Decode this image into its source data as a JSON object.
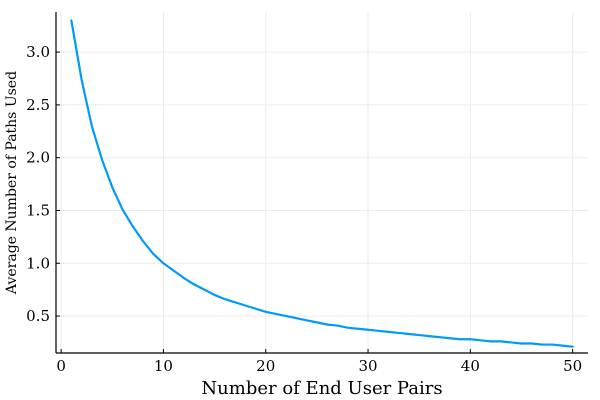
{
  "chart_data": {
    "type": "line",
    "title": "",
    "xlabel": "Number of End User Pairs",
    "ylabel": "Average Number of Paths Used",
    "xlim": [
      -0.5,
      51.5
    ],
    "ylim": [
      0.15,
      3.38
    ],
    "xticks": [
      0,
      10,
      20,
      30,
      40,
      50
    ],
    "xtick_labels": [
      "0",
      "10",
      "20",
      "30",
      "40",
      "50"
    ],
    "yticks": [
      0.5,
      1.0,
      1.5,
      2.0,
      2.5,
      3.0
    ],
    "ytick_labels": [
      "0.5",
      "1.0",
      "1.5",
      "2.0",
      "2.5",
      "3.0"
    ],
    "grid": true,
    "legend": "none",
    "colors": {
      "series": "#009AFA",
      "axis": "#000000",
      "grid": "#EBEBEB"
    },
    "series": [
      {
        "x": [
          1,
          2,
          3,
          4,
          5,
          6,
          7,
          8,
          9,
          10,
          11,
          12,
          13,
          14,
          15,
          16,
          17,
          18,
          19,
          20,
          21,
          22,
          23,
          24,
          25,
          26,
          27,
          28,
          29,
          30,
          31,
          32,
          33,
          34,
          35,
          36,
          37,
          38,
          39,
          40,
          41,
          42,
          43,
          44,
          45,
          46,
          47,
          48,
          49,
          50
        ],
        "values": [
          3.3,
          2.74,
          2.3,
          1.98,
          1.72,
          1.51,
          1.35,
          1.21,
          1.09,
          1.0,
          0.93,
          0.86,
          0.8,
          0.75,
          0.7,
          0.66,
          0.63,
          0.6,
          0.57,
          0.54,
          0.52,
          0.5,
          0.48,
          0.46,
          0.44,
          0.42,
          0.41,
          0.39,
          0.38,
          0.37,
          0.36,
          0.35,
          0.34,
          0.33,
          0.32,
          0.31,
          0.3,
          0.29,
          0.28,
          0.28,
          0.27,
          0.26,
          0.26,
          0.25,
          0.24,
          0.24,
          0.23,
          0.23,
          0.22,
          0.21
        ]
      }
    ]
  }
}
